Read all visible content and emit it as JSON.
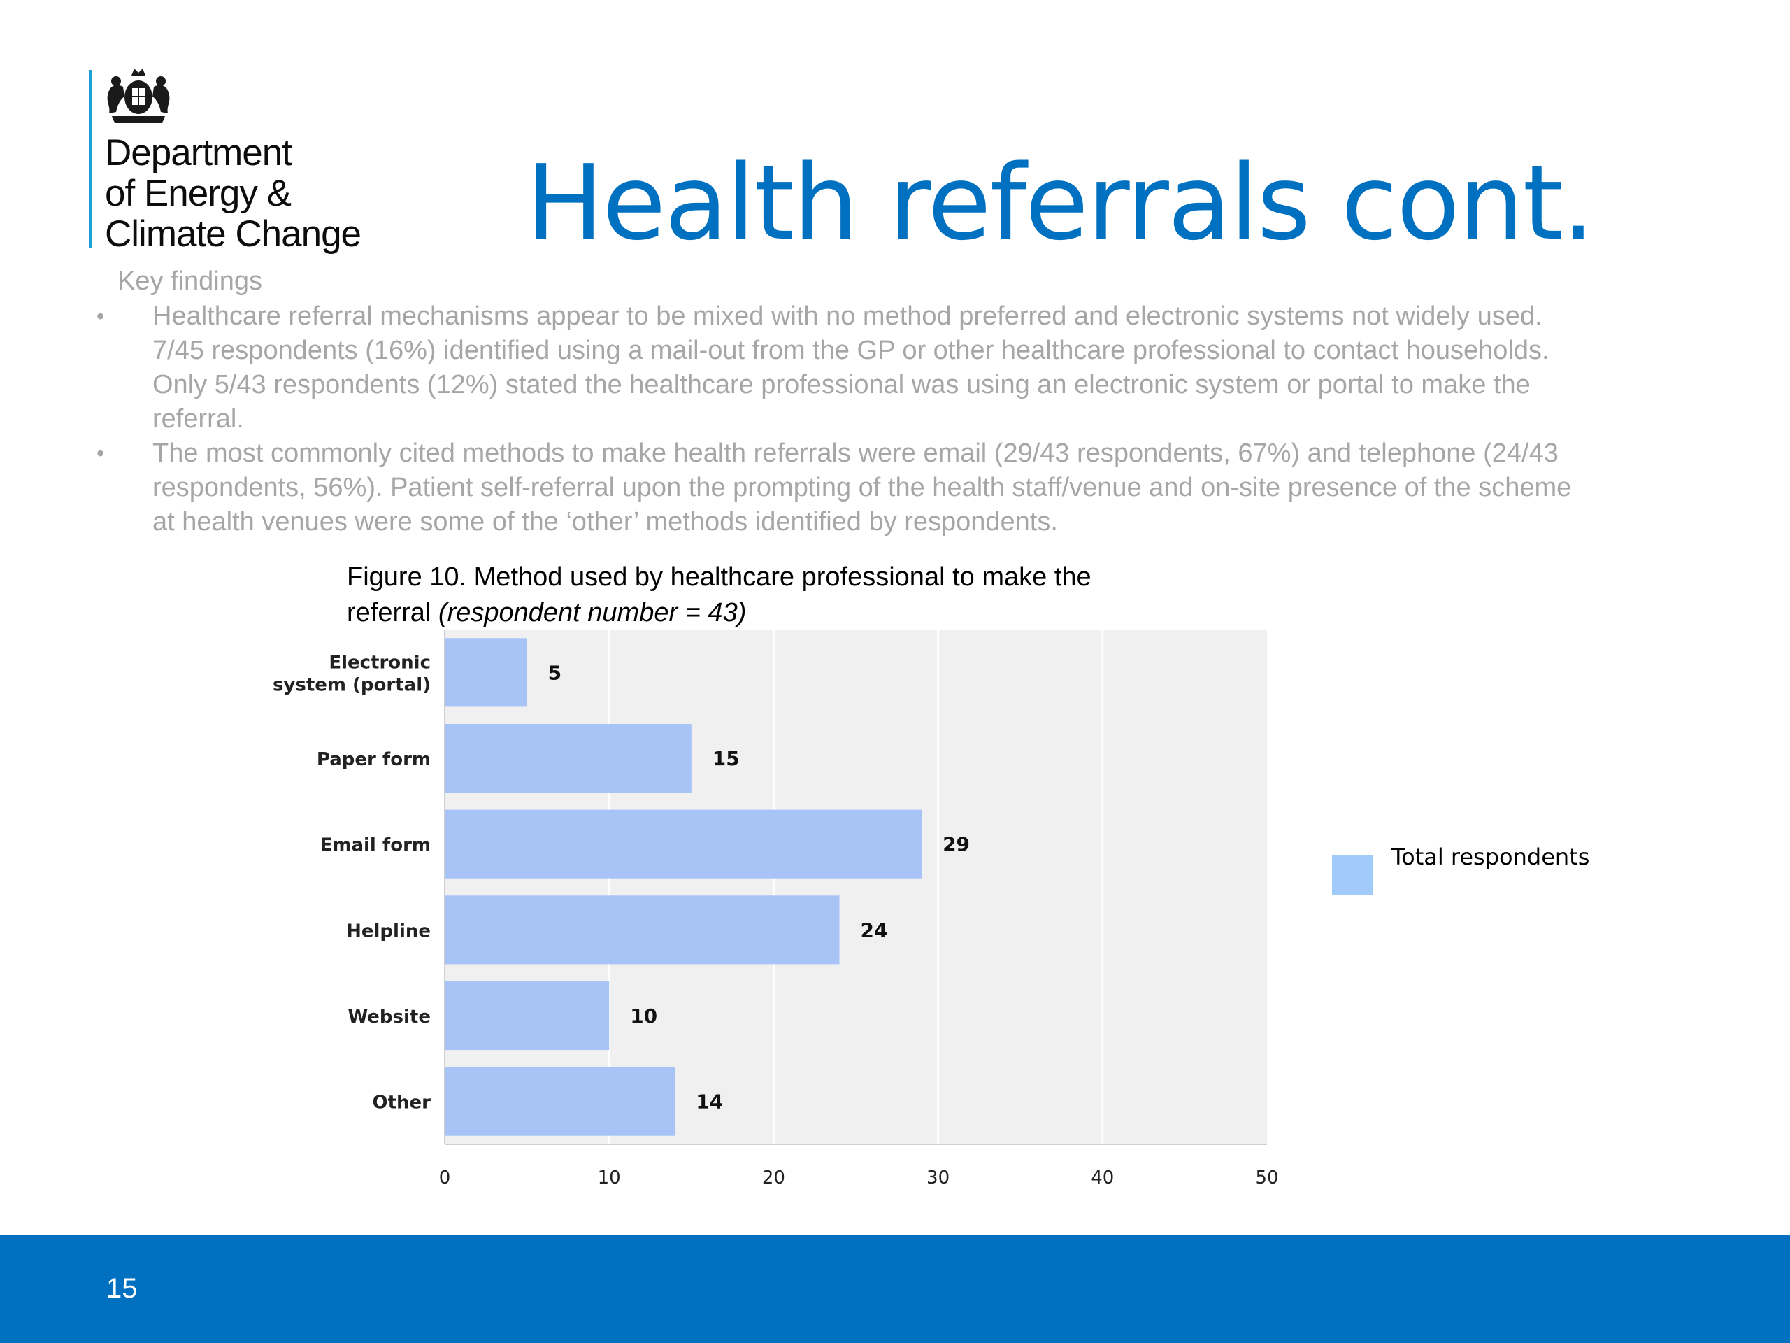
{
  "header": {
    "org_lines": [
      "Department",
      "of Energy &",
      "Climate Change"
    ],
    "title": "Health referrals cont."
  },
  "findings": {
    "heading": "Key findings",
    "bullets": [
      "Healthcare referral mechanisms appear to be mixed with no method preferred and electronic systems not widely used. 7/45 respondents (16%) identified using a mail-out from the GP or other healthcare professional to contact households. Only 5/43 respondents (12%) stated the healthcare professional was using an electronic system or portal to make the referral.",
      "The most commonly cited methods to make health referrals were email (29/43 respondents, 67%) and telephone (24/43 respondents, 56%). Patient self-referral upon the prompting of the health staff/venue and on-site presence of the scheme at health venues were some of the ‘other’ methods identified by respondents."
    ]
  },
  "figure": {
    "title_main": "Figure 10. Method used by healthcare professional to make the referral ",
    "title_italic": "(respondent number = 43)"
  },
  "chart_data": {
    "type": "bar",
    "orientation": "horizontal",
    "categories": [
      [
        "Electronic",
        "system (portal)"
      ],
      [
        "Paper form"
      ],
      [
        "Email form"
      ],
      [
        "Helpline"
      ],
      [
        "Website"
      ],
      [
        "Other"
      ]
    ],
    "series": [
      {
        "name": "Total respondents",
        "values": [
          5,
          15,
          29,
          24,
          10,
          14
        ]
      }
    ],
    "xlim": [
      0,
      50
    ],
    "xticks": [
      0,
      10,
      20,
      30,
      40,
      50
    ],
    "grid": true,
    "legend_position": "right",
    "bar_color": "#a8c4f7",
    "legend_color": "#9fcaf9",
    "plot_bg": "#f0f0f0"
  },
  "footer": {
    "page_number": "15"
  }
}
